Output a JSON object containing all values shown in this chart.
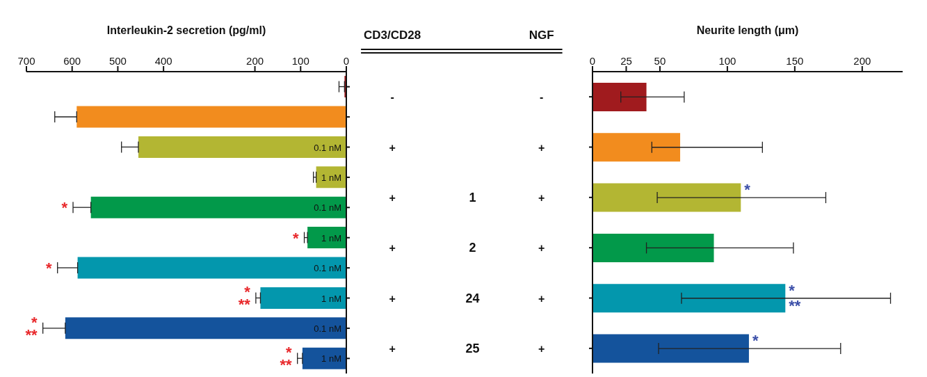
{
  "chart_data": [
    {
      "type": "bar",
      "orientation": "horizontal",
      "xlabel": "Interleukin-2 secretion (pg/ml)",
      "categories": [
        null,
        null,
        "0.1 nM",
        "1 nM",
        "0.1 nM",
        "1 nM",
        "0.1 nM",
        "1 nM",
        "0.1 nM",
        "1 nM"
      ],
      "values": [
        4,
        590,
        455,
        66,
        559,
        85,
        588,
        188,
        615,
        96
      ],
      "errors": [
        [
          4,
          16
        ],
        [
          590,
          638
        ],
        [
          455,
          492
        ],
        [
          66,
          72
        ],
        [
          559,
          598
        ],
        [
          85,
          92
        ],
        [
          588,
          632
        ],
        [
          188,
          198
        ],
        [
          615,
          664
        ],
        [
          96,
          107
        ]
      ],
      "colors": [
        "#a01b1e",
        "#f28c1e",
        "#b3b633",
        "#b3b633",
        "#02994a",
        "#02994a",
        "#0397ad",
        "#0397ad",
        "#14539c",
        "#14539c"
      ],
      "value_labels": [
        null,
        null,
        null,
        null,
        "*",
        "*",
        "*",
        "*\n**",
        "*\n**",
        "*\n**"
      ],
      "xlim": [
        700,
        0
      ],
      "xticks": [
        700,
        600,
        500,
        400,
        200,
        100,
        0
      ],
      "grid": false,
      "legend": false
    },
    {
      "type": "other",
      "categories": [
        "CD3/CD28",
        null,
        "NGF"
      ],
      "cell_labels": [
        [
          "-",
          null,
          "-"
        ],
        [
          "+",
          null,
          "+"
        ],
        [
          "+",
          "1",
          "+"
        ],
        [
          "+",
          "2",
          "+"
        ],
        [
          "+",
          "24",
          "+"
        ],
        [
          "+",
          "25",
          "+"
        ]
      ]
    },
    {
      "type": "bar",
      "orientation": "horizontal",
      "xlabel": "Neurite length (μm)",
      "categories": [
        null,
        null,
        null,
        null,
        null,
        null
      ],
      "values": [
        40,
        65,
        110,
        90,
        143,
        116
      ],
      "errors": [
        [
          21,
          68
        ],
        [
          44,
          126
        ],
        [
          48,
          173
        ],
        [
          40,
          149
        ],
        [
          66,
          221
        ],
        [
          49,
          184
        ]
      ],
      "colors": [
        "#a01b1e",
        "#f28c1e",
        "#b3b633",
        "#02994a",
        "#0397ad",
        "#14539c"
      ],
      "value_labels": [
        null,
        null,
        "*",
        null,
        "*\n**",
        "*"
      ],
      "xlim": [
        0,
        230
      ],
      "xticks": [
        0,
        25,
        50,
        100,
        150,
        200
      ],
      "grid": false,
      "legend": false
    }
  ]
}
